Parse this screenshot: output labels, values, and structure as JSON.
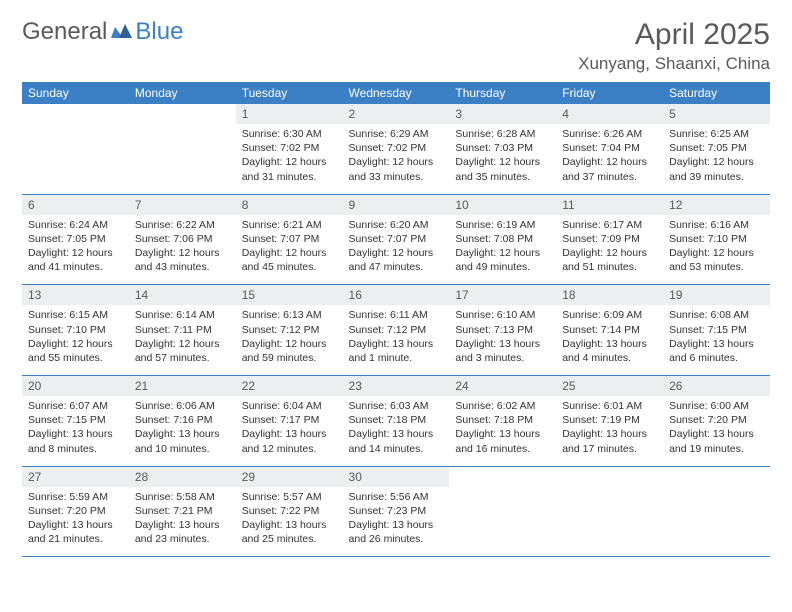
{
  "brand": {
    "part1": "General",
    "part2": "Blue"
  },
  "title": "April 2025",
  "location": "Xunyang, Shaanxi, China",
  "colors": {
    "header_bg": "#3b7fc4",
    "header_text": "#ffffff",
    "daynum_bg": "#eceeef",
    "text": "#333333",
    "title_text": "#5a5a5a",
    "page_bg": "#ffffff",
    "row_border": "#3b7fc4"
  },
  "typography": {
    "title_fontsize": 30,
    "location_fontsize": 17,
    "dayhead_fontsize": 12,
    "daynum_fontsize": 12,
    "content_fontsize": 10.5
  },
  "dayNames": [
    "Sunday",
    "Monday",
    "Tuesday",
    "Wednesday",
    "Thursday",
    "Friday",
    "Saturday"
  ],
  "weeks": [
    [
      {
        "n": "",
        "sr": "",
        "ss": "",
        "dl": ""
      },
      {
        "n": "",
        "sr": "",
        "ss": "",
        "dl": ""
      },
      {
        "n": "1",
        "sr": "Sunrise: 6:30 AM",
        "ss": "Sunset: 7:02 PM",
        "dl": "Daylight: 12 hours and 31 minutes."
      },
      {
        "n": "2",
        "sr": "Sunrise: 6:29 AM",
        "ss": "Sunset: 7:02 PM",
        "dl": "Daylight: 12 hours and 33 minutes."
      },
      {
        "n": "3",
        "sr": "Sunrise: 6:28 AM",
        "ss": "Sunset: 7:03 PM",
        "dl": "Daylight: 12 hours and 35 minutes."
      },
      {
        "n": "4",
        "sr": "Sunrise: 6:26 AM",
        "ss": "Sunset: 7:04 PM",
        "dl": "Daylight: 12 hours and 37 minutes."
      },
      {
        "n": "5",
        "sr": "Sunrise: 6:25 AM",
        "ss": "Sunset: 7:05 PM",
        "dl": "Daylight: 12 hours and 39 minutes."
      }
    ],
    [
      {
        "n": "6",
        "sr": "Sunrise: 6:24 AM",
        "ss": "Sunset: 7:05 PM",
        "dl": "Daylight: 12 hours and 41 minutes."
      },
      {
        "n": "7",
        "sr": "Sunrise: 6:22 AM",
        "ss": "Sunset: 7:06 PM",
        "dl": "Daylight: 12 hours and 43 minutes."
      },
      {
        "n": "8",
        "sr": "Sunrise: 6:21 AM",
        "ss": "Sunset: 7:07 PM",
        "dl": "Daylight: 12 hours and 45 minutes."
      },
      {
        "n": "9",
        "sr": "Sunrise: 6:20 AM",
        "ss": "Sunset: 7:07 PM",
        "dl": "Daylight: 12 hours and 47 minutes."
      },
      {
        "n": "10",
        "sr": "Sunrise: 6:19 AM",
        "ss": "Sunset: 7:08 PM",
        "dl": "Daylight: 12 hours and 49 minutes."
      },
      {
        "n": "11",
        "sr": "Sunrise: 6:17 AM",
        "ss": "Sunset: 7:09 PM",
        "dl": "Daylight: 12 hours and 51 minutes."
      },
      {
        "n": "12",
        "sr": "Sunrise: 6:16 AM",
        "ss": "Sunset: 7:10 PM",
        "dl": "Daylight: 12 hours and 53 minutes."
      }
    ],
    [
      {
        "n": "13",
        "sr": "Sunrise: 6:15 AM",
        "ss": "Sunset: 7:10 PM",
        "dl": "Daylight: 12 hours and 55 minutes."
      },
      {
        "n": "14",
        "sr": "Sunrise: 6:14 AM",
        "ss": "Sunset: 7:11 PM",
        "dl": "Daylight: 12 hours and 57 minutes."
      },
      {
        "n": "15",
        "sr": "Sunrise: 6:13 AM",
        "ss": "Sunset: 7:12 PM",
        "dl": "Daylight: 12 hours and 59 minutes."
      },
      {
        "n": "16",
        "sr": "Sunrise: 6:11 AM",
        "ss": "Sunset: 7:12 PM",
        "dl": "Daylight: 13 hours and 1 minute."
      },
      {
        "n": "17",
        "sr": "Sunrise: 6:10 AM",
        "ss": "Sunset: 7:13 PM",
        "dl": "Daylight: 13 hours and 3 minutes."
      },
      {
        "n": "18",
        "sr": "Sunrise: 6:09 AM",
        "ss": "Sunset: 7:14 PM",
        "dl": "Daylight: 13 hours and 4 minutes."
      },
      {
        "n": "19",
        "sr": "Sunrise: 6:08 AM",
        "ss": "Sunset: 7:15 PM",
        "dl": "Daylight: 13 hours and 6 minutes."
      }
    ],
    [
      {
        "n": "20",
        "sr": "Sunrise: 6:07 AM",
        "ss": "Sunset: 7:15 PM",
        "dl": "Daylight: 13 hours and 8 minutes."
      },
      {
        "n": "21",
        "sr": "Sunrise: 6:06 AM",
        "ss": "Sunset: 7:16 PM",
        "dl": "Daylight: 13 hours and 10 minutes."
      },
      {
        "n": "22",
        "sr": "Sunrise: 6:04 AM",
        "ss": "Sunset: 7:17 PM",
        "dl": "Daylight: 13 hours and 12 minutes."
      },
      {
        "n": "23",
        "sr": "Sunrise: 6:03 AM",
        "ss": "Sunset: 7:18 PM",
        "dl": "Daylight: 13 hours and 14 minutes."
      },
      {
        "n": "24",
        "sr": "Sunrise: 6:02 AM",
        "ss": "Sunset: 7:18 PM",
        "dl": "Daylight: 13 hours and 16 minutes."
      },
      {
        "n": "25",
        "sr": "Sunrise: 6:01 AM",
        "ss": "Sunset: 7:19 PM",
        "dl": "Daylight: 13 hours and 17 minutes."
      },
      {
        "n": "26",
        "sr": "Sunrise: 6:00 AM",
        "ss": "Sunset: 7:20 PM",
        "dl": "Daylight: 13 hours and 19 minutes."
      }
    ],
    [
      {
        "n": "27",
        "sr": "Sunrise: 5:59 AM",
        "ss": "Sunset: 7:20 PM",
        "dl": "Daylight: 13 hours and 21 minutes."
      },
      {
        "n": "28",
        "sr": "Sunrise: 5:58 AM",
        "ss": "Sunset: 7:21 PM",
        "dl": "Daylight: 13 hours and 23 minutes."
      },
      {
        "n": "29",
        "sr": "Sunrise: 5:57 AM",
        "ss": "Sunset: 7:22 PM",
        "dl": "Daylight: 13 hours and 25 minutes."
      },
      {
        "n": "30",
        "sr": "Sunrise: 5:56 AM",
        "ss": "Sunset: 7:23 PM",
        "dl": "Daylight: 13 hours and 26 minutes."
      },
      {
        "n": "",
        "sr": "",
        "ss": "",
        "dl": ""
      },
      {
        "n": "",
        "sr": "",
        "ss": "",
        "dl": ""
      },
      {
        "n": "",
        "sr": "",
        "ss": "",
        "dl": ""
      }
    ]
  ]
}
